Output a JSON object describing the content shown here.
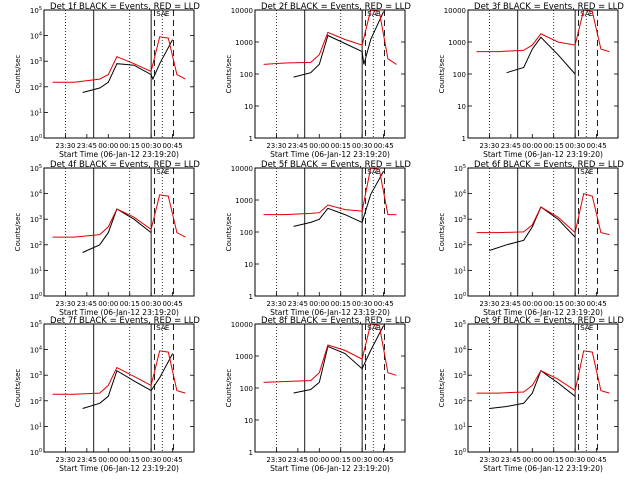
{
  "figure": {
    "start_time_label": "Start Time (06-Jan-12 23:19:20)",
    "ylabel": "Counts/sec",
    "time_ticks": [
      "23:30",
      "23:45",
      "00:00",
      "00:15",
      "00:30",
      "00:45"
    ],
    "colors": {
      "events": "#000000",
      "lld": "#e00000",
      "axes": "#000000"
    }
  },
  "chart_data": [
    {
      "type": "line",
      "title": "Det 1f BLACK = Events, RED = LLD",
      "ylim": [
        1,
        100000
      ],
      "yscale": "log",
      "yticks": [
        "10^0",
        "10^1",
        "10^2",
        "10^3",
        "10^4",
        "10^5"
      ],
      "markers": [
        "SA",
        "E"
      ],
      "series": [
        {
          "name": "Events",
          "x": [
            23.7,
            23.9,
            24.0,
            24.1,
            24.3,
            24.5,
            24.52,
            24.6,
            24.75
          ],
          "values": [
            60,
            90,
            150,
            800,
            700,
            300,
            200,
            800,
            7000
          ]
        },
        {
          "name": "LLD",
          "x": [
            23.35,
            23.6,
            23.9,
            24.0,
            24.1,
            24.3,
            24.5,
            24.6,
            24.7,
            24.8,
            24.9
          ],
          "values": [
            150,
            150,
            200,
            300,
            1500,
            800,
            400,
            9000,
            8000,
            300,
            200
          ]
        }
      ]
    },
    {
      "type": "line",
      "title": "Det 2f BLACK = Events, RED = LLD",
      "ylim": [
        1,
        10000
      ],
      "yscale": "log",
      "yticks": [
        "1",
        "10",
        "100",
        "1000",
        "10000"
      ],
      "markers": [
        "SA",
        "E"
      ],
      "series": [
        {
          "name": "Events",
          "x": [
            23.7,
            23.9,
            24.0,
            24.1,
            24.3,
            24.5,
            24.52,
            24.6,
            24.75
          ],
          "values": [
            80,
            110,
            200,
            1600,
            900,
            500,
            200,
            1200,
            9000
          ]
        },
        {
          "name": "LLD",
          "x": [
            23.35,
            23.6,
            23.9,
            24.0,
            24.1,
            24.3,
            24.5,
            24.6,
            24.7,
            24.8,
            24.9
          ],
          "values": [
            200,
            220,
            230,
            400,
            2000,
            1200,
            800,
            10000,
            9000,
            300,
            200
          ]
        }
      ]
    },
    {
      "type": "line",
      "title": "Det 3f BLACK = Events, RED = LLD",
      "ylim": [
        1,
        10000
      ],
      "yscale": "log",
      "yticks": [
        "1",
        "10",
        "100",
        "1000",
        "10000"
      ],
      "markers": [
        "SA",
        "E"
      ],
      "series": [
        {
          "name": "Events",
          "x": [
            23.7,
            23.9,
            24.0,
            24.1,
            24.3,
            24.5
          ],
          "values": [
            110,
            160,
            600,
            1400,
            400,
            100
          ]
        },
        {
          "name": "LLD",
          "x": [
            23.35,
            23.6,
            23.9,
            24.0,
            24.1,
            24.3,
            24.5,
            24.6,
            24.7,
            24.8,
            24.9
          ],
          "values": [
            500,
            500,
            550,
            800,
            1800,
            1000,
            800,
            10000,
            9000,
            600,
            500
          ]
        }
      ]
    },
    {
      "type": "line",
      "title": "Det 4f BLACK = Events, RED = LLD",
      "ylim": [
        1,
        100000
      ],
      "yscale": "log",
      "yticks": [
        "10^0",
        "10^1",
        "10^2",
        "10^3",
        "10^4",
        "10^5"
      ],
      "markers": [
        "SA",
        "E"
      ],
      "series": [
        {
          "name": "Events",
          "x": [
            23.7,
            23.9,
            24.0,
            24.1,
            24.3,
            24.5
          ],
          "values": [
            50,
            100,
            300,
            2500,
            1000,
            300
          ]
        },
        {
          "name": "LLD",
          "x": [
            23.35,
            23.6,
            23.9,
            24.0,
            24.1,
            24.3,
            24.5,
            24.6,
            24.7,
            24.8,
            24.9
          ],
          "values": [
            200,
            200,
            250,
            500,
            2500,
            1200,
            400,
            9000,
            8000,
            300,
            200
          ]
        }
      ]
    },
    {
      "type": "line",
      "title": "Det 5f BLACK = Events, RED = LLD",
      "ylim": [
        1,
        10000
      ],
      "yscale": "log",
      "yticks": [
        "1",
        "10",
        "100",
        "1000",
        "10000"
      ],
      "markers": [
        "SA",
        "E"
      ],
      "series": [
        {
          "name": "Events",
          "x": [
            23.7,
            23.9,
            24.0,
            24.1,
            24.3,
            24.5,
            24.6,
            24.75
          ],
          "values": [
            150,
            200,
            250,
            550,
            350,
            200,
            1500,
            8000
          ]
        },
        {
          "name": "LLD",
          "x": [
            23.35,
            23.6,
            23.9,
            24.0,
            24.1,
            24.3,
            24.5,
            24.6,
            24.7,
            24.8,
            24.9
          ],
          "values": [
            350,
            350,
            380,
            400,
            700,
            500,
            450,
            10000,
            9000,
            350,
            350
          ]
        }
      ]
    },
    {
      "type": "line",
      "title": "Det 6f BLACK = Events, RED = LLD",
      "ylim": [
        1,
        100000
      ],
      "yscale": "log",
      "yticks": [
        "10^0",
        "10^1",
        "10^2",
        "10^3",
        "10^4",
        "10^5"
      ],
      "markers": [
        "SA",
        "E"
      ],
      "series": [
        {
          "name": "Events",
          "x": [
            23.5,
            23.7,
            23.9,
            24.0,
            24.1,
            24.3,
            24.5
          ],
          "values": [
            60,
            100,
            150,
            500,
            3000,
            1000,
            200
          ]
        },
        {
          "name": "LLD",
          "x": [
            23.35,
            23.6,
            23.9,
            24.0,
            24.1,
            24.3,
            24.5,
            24.6,
            24.7,
            24.8,
            24.9
          ],
          "values": [
            300,
            300,
            320,
            600,
            3000,
            1200,
            300,
            10000,
            8000,
            300,
            250
          ]
        }
      ]
    },
    {
      "type": "line",
      "title": "Det 7f BLACK = Events, RED = LLD",
      "ylim": [
        1,
        100000
      ],
      "yscale": "log",
      "yticks": [
        "10^0",
        "10^1",
        "10^2",
        "10^3",
        "10^4",
        "10^5"
      ],
      "markers": [
        "SA",
        "E"
      ],
      "series": [
        {
          "name": "Events",
          "x": [
            23.7,
            23.9,
            24.0,
            24.1,
            24.3,
            24.5,
            24.6,
            24.75
          ],
          "values": [
            50,
            80,
            150,
            1500,
            600,
            250,
            800,
            7000
          ]
        },
        {
          "name": "LLD",
          "x": [
            23.35,
            23.6,
            23.9,
            24.0,
            24.1,
            24.3,
            24.5,
            24.6,
            24.7,
            24.8,
            24.9
          ],
          "values": [
            180,
            180,
            200,
            400,
            2000,
            900,
            400,
            9000,
            8000,
            250,
            200
          ]
        }
      ]
    },
    {
      "type": "line",
      "title": "Det 8f BLACK = Events, RED = LLD",
      "ylim": [
        1,
        10000
      ],
      "yscale": "log",
      "yticks": [
        "1",
        "10",
        "100",
        "1000",
        "10000"
      ],
      "markers": [
        "SA",
        "E"
      ],
      "series": [
        {
          "name": "Events",
          "x": [
            23.7,
            23.9,
            24.0,
            24.1,
            24.3,
            24.5,
            24.6,
            24.75
          ],
          "values": [
            70,
            90,
            150,
            2000,
            1200,
            400,
            1500,
            9000
          ]
        },
        {
          "name": "LLD",
          "x": [
            23.35,
            23.6,
            23.9,
            24.0,
            24.1,
            24.3,
            24.5,
            24.6,
            24.7,
            24.8,
            24.9
          ],
          "values": [
            150,
            160,
            170,
            300,
            2200,
            1500,
            800,
            10000,
            9000,
            300,
            250
          ]
        }
      ]
    },
    {
      "type": "line",
      "title": "Det 9f BLACK = Events, RED = LLD",
      "ylim": [
        1,
        100000
      ],
      "yscale": "log",
      "yticks": [
        "10^0",
        "10^1",
        "10^2",
        "10^3",
        "10^4",
        "10^5"
      ],
      "markers": [
        "SA",
        "E"
      ],
      "series": [
        {
          "name": "Events",
          "x": [
            23.5,
            23.7,
            23.9,
            24.0,
            24.1,
            24.3,
            24.5
          ],
          "values": [
            50,
            60,
            80,
            200,
            1500,
            500,
            150
          ]
        },
        {
          "name": "LLD",
          "x": [
            23.35,
            23.6,
            23.9,
            24.0,
            24.1,
            24.3,
            24.5,
            24.6,
            24.7,
            24.8,
            24.9
          ],
          "values": [
            200,
            200,
            220,
            400,
            1500,
            700,
            250,
            9000,
            8000,
            250,
            200
          ]
        }
      ]
    }
  ]
}
